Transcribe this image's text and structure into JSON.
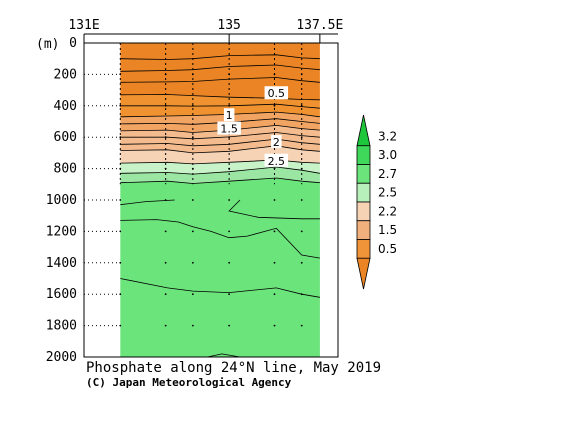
{
  "chart_data": {
    "type": "heatmap",
    "title": "Phosphate along 24°N line, May 2019",
    "credit": "(C) Japan Meteorological Agency",
    "y_unit_label": "(m)",
    "x_ticks": [
      {
        "label": "131E",
        "value": 131
      },
      {
        "label": "135",
        "value": 135
      },
      {
        "label": "137.5E",
        "value": 137.5
      }
    ],
    "x_range": [
      131,
      138
    ],
    "y_range": [
      0,
      2000
    ],
    "y_ticks": [
      0,
      200,
      400,
      600,
      800,
      1000,
      1200,
      1400,
      1600,
      1800,
      2000
    ],
    "station_longitudes": [
      132.0,
      133.25,
      134.0,
      135.0,
      136.25,
      137.0
    ],
    "data_lon_range": [
      132.0,
      137.5
    ],
    "colorbar": {
      "levels": [
        "3.2",
        "3.0",
        "2.7",
        "2.5",
        "2.2",
        "1.5",
        "0.5"
      ],
      "colors": [
        "#1ec63c",
        "#40d85a",
        "#6ce47c",
        "#b8f0bc",
        "#f7d3b6",
        "#f2b07c",
        "#f0943a",
        "#ea8425"
      ],
      "extend": "both"
    },
    "bands": [
      {
        "label": "<0.5",
        "color": "#ea8425",
        "top": [
          [
            132,
            0
          ],
          [
            137.5,
            0
          ]
        ],
        "bottom": [
          [
            132,
            330
          ],
          [
            133.3,
            328
          ],
          [
            134,
            335
          ],
          [
            135,
            345
          ],
          [
            136.3,
            352
          ],
          [
            137,
            360
          ],
          [
            137.5,
            362
          ]
        ]
      },
      {
        "label": "0.5-1.0",
        "color": "#ef922f",
        "top": [
          [
            132,
            330
          ],
          [
            133.3,
            328
          ],
          [
            134,
            335
          ],
          [
            135,
            345
          ],
          [
            136.3,
            352
          ],
          [
            137,
            360
          ],
          [
            137.5,
            362
          ]
        ],
        "bottom": [
          [
            132,
            470
          ],
          [
            133.3,
            465
          ],
          [
            134,
            462
          ],
          [
            135,
            455
          ],
          [
            136.3,
            440
          ],
          [
            137,
            455
          ],
          [
            137.5,
            470
          ]
        ]
      },
      {
        "label": "1.0-1.5",
        "color": "#f2a463",
        "top": [
          [
            132,
            470
          ],
          [
            133.3,
            465
          ],
          [
            134,
            462
          ],
          [
            135,
            455
          ],
          [
            136.3,
            440
          ],
          [
            137,
            455
          ],
          [
            137.5,
            470
          ]
        ],
        "bottom": [
          [
            132,
            560
          ],
          [
            133.3,
            555
          ],
          [
            134,
            570
          ],
          [
            135,
            555
          ],
          [
            136.3,
            525
          ],
          [
            137,
            545
          ],
          [
            137.5,
            555
          ]
        ]
      },
      {
        "label": "1.5-2.2",
        "color": "#f4bc8e",
        "top": [
          [
            132,
            560
          ],
          [
            133.3,
            555
          ],
          [
            134,
            570
          ],
          [
            135,
            555
          ],
          [
            136.3,
            525
          ],
          [
            137,
            545
          ],
          [
            137.5,
            555
          ]
        ],
        "bottom": [
          [
            132,
            685
          ],
          [
            133.3,
            680
          ],
          [
            134,
            700
          ],
          [
            135,
            690
          ],
          [
            136.3,
            655
          ],
          [
            137,
            680
          ],
          [
            137.5,
            690
          ]
        ]
      },
      {
        "label": "2.2-2.5",
        "color": "#f7d3b6",
        "top": [
          [
            132,
            685
          ],
          [
            133.3,
            680
          ],
          [
            134,
            700
          ],
          [
            135,
            690
          ],
          [
            136.3,
            655
          ],
          [
            137,
            680
          ],
          [
            137.5,
            690
          ]
        ],
        "bottom": [
          [
            132,
            765
          ],
          [
            133.3,
            760
          ],
          [
            134,
            770
          ],
          [
            135,
            760
          ],
          [
            136.3,
            745
          ],
          [
            137,
            760
          ],
          [
            137.5,
            765
          ]
        ]
      },
      {
        "label": "2.5-2.7",
        "color": "#c8f2c8",
        "top": [
          [
            132,
            765
          ],
          [
            133.3,
            760
          ],
          [
            134,
            770
          ],
          [
            135,
            760
          ],
          [
            136.3,
            745
          ],
          [
            137,
            760
          ],
          [
            137.5,
            765
          ]
        ],
        "bottom": [
          [
            132,
            830
          ],
          [
            133.3,
            825
          ],
          [
            134,
            835
          ],
          [
            135,
            820
          ],
          [
            136.3,
            790
          ],
          [
            137,
            810
          ],
          [
            137.5,
            830
          ]
        ]
      },
      {
        "label": "2.7-3.0",
        "color": "#9ae6a2",
        "top": [
          [
            132,
            830
          ],
          [
            133.3,
            825
          ],
          [
            134,
            835
          ],
          [
            135,
            820
          ],
          [
            136.3,
            790
          ],
          [
            137,
            810
          ],
          [
            137.5,
            830
          ]
        ],
        "bottom": [
          [
            132,
            890
          ],
          [
            133.3,
            880
          ],
          [
            134,
            895
          ],
          [
            135,
            880
          ],
          [
            136.3,
            860
          ],
          [
            137,
            880
          ],
          [
            137.5,
            890
          ]
        ]
      },
      {
        "label": ">3.0",
        "color": "#6ce47c",
        "top": [
          [
            132,
            890
          ],
          [
            133.3,
            880
          ],
          [
            134,
            895
          ],
          [
            135,
            880
          ],
          [
            136.3,
            860
          ],
          [
            137,
            880
          ],
          [
            137.5,
            890
          ]
        ],
        "bottom": [
          [
            132,
            2000
          ],
          [
            137.5,
            2000
          ]
        ]
      }
    ],
    "contours": [
      [
        [
          132,
          100
        ],
        [
          133.3,
          105
        ],
        [
          134,
          100
        ],
        [
          135,
          80
        ],
        [
          136.3,
          75
        ],
        [
          137,
          95
        ],
        [
          137.5,
          100
        ]
      ],
      [
        [
          132,
          180
        ],
        [
          133.3,
          175
        ],
        [
          134,
          170
        ],
        [
          135,
          150
        ],
        [
          136.3,
          140
        ],
        [
          137,
          160
        ],
        [
          137.5,
          170
        ]
      ],
      [
        [
          132,
          250
        ],
        [
          133.3,
          248
        ],
        [
          134,
          245
        ],
        [
          135,
          230
        ],
        [
          136.3,
          220
        ],
        [
          137,
          240
        ],
        [
          137.5,
          250
        ]
      ],
      [
        [
          132,
          330
        ],
        [
          133.3,
          328
        ],
        [
          134,
          335
        ],
        [
          135,
          345
        ],
        [
          136.3,
          352
        ],
        [
          137,
          360
        ],
        [
          137.5,
          362
        ]
      ],
      [
        [
          132,
          400
        ],
        [
          133.3,
          400
        ],
        [
          134,
          402
        ],
        [
          135,
          400
        ],
        [
          136.3,
          390
        ],
        [
          137,
          405
        ],
        [
          137.5,
          415
        ]
      ],
      [
        [
          132,
          470
        ],
        [
          133.3,
          465
        ],
        [
          134,
          462
        ],
        [
          135,
          455
        ],
        [
          136.3,
          440
        ],
        [
          137,
          455
        ],
        [
          137.5,
          470
        ]
      ],
      [
        [
          132,
          515
        ],
        [
          133.3,
          512
        ],
        [
          134,
          518
        ],
        [
          135,
          505
        ],
        [
          136.3,
          482
        ],
        [
          137,
          500
        ],
        [
          137.5,
          512
        ]
      ],
      [
        [
          132,
          560
        ],
        [
          133.3,
          555
        ],
        [
          134,
          570
        ],
        [
          135,
          555
        ],
        [
          136.3,
          525
        ],
        [
          137,
          545
        ],
        [
          137.5,
          555
        ]
      ],
      [
        [
          132,
          600
        ],
        [
          133.3,
          600
        ],
        [
          134,
          610
        ],
        [
          135,
          598
        ],
        [
          136.3,
          570
        ],
        [
          137,
          590
        ],
        [
          137.5,
          600
        ]
      ],
      [
        [
          132,
          645
        ],
        [
          133.3,
          640
        ],
        [
          134,
          655
        ],
        [
          135,
          645
        ],
        [
          136.3,
          612
        ],
        [
          137,
          635
        ],
        [
          137.5,
          645
        ]
      ],
      [
        [
          132,
          685
        ],
        [
          133.3,
          680
        ],
        [
          134,
          700
        ],
        [
          135,
          690
        ],
        [
          136.3,
          655
        ],
        [
          137,
          680
        ],
        [
          137.5,
          690
        ]
      ],
      [
        [
          132,
          765
        ],
        [
          133.3,
          760
        ],
        [
          134,
          770
        ],
        [
          135,
          760
        ],
        [
          136.3,
          745
        ],
        [
          137,
          760
        ],
        [
          137.5,
          765
        ]
      ],
      [
        [
          132,
          830
        ],
        [
          133.3,
          825
        ],
        [
          134,
          835
        ],
        [
          135,
          820
        ],
        [
          136.3,
          790
        ],
        [
          137,
          810
        ],
        [
          137.5,
          830
        ]
      ],
      [
        [
          132,
          890
        ],
        [
          133.3,
          880
        ],
        [
          134,
          895
        ],
        [
          135,
          880
        ],
        [
          136.3,
          860
        ],
        [
          137,
          880
        ],
        [
          137.5,
          890
        ]
      ],
      [
        [
          132,
          1130
        ],
        [
          133,
          1125
        ],
        [
          133.6,
          1140
        ],
        [
          134,
          1170
        ],
        [
          134.5,
          1200
        ],
        [
          135,
          1240
        ],
        [
          135.5,
          1230
        ],
        [
          136.3,
          1180
        ],
        [
          137,
          1350
        ],
        [
          137.5,
          1370
        ]
      ],
      [
        [
          132,
          1030
        ],
        [
          132.7,
          1010
        ],
        [
          133.5,
          1000
        ]
      ],
      [
        [
          135.3,
          1000
        ],
        [
          135,
          1070
        ],
        [
          135.8,
          1110
        ],
        [
          137,
          1120
        ],
        [
          137.5,
          1120
        ]
      ],
      [
        [
          132,
          1500
        ],
        [
          133.3,
          1560
        ],
        [
          134,
          1580
        ],
        [
          135,
          1590
        ],
        [
          136.3,
          1560
        ],
        [
          137,
          1600
        ],
        [
          137.5,
          1620
        ]
      ],
      [
        [
          134.4,
          2000
        ],
        [
          134.8,
          1980
        ],
        [
          135.3,
          2000
        ]
      ]
    ],
    "contour_labels": [
      {
        "text": "0.5",
        "lon": 136.3,
        "depth": 320
      },
      {
        "text": "1",
        "lon": 135.0,
        "depth": 460
      },
      {
        "text": "1.5",
        "lon": 135.0,
        "depth": 545
      },
      {
        "text": "2",
        "lon": 136.3,
        "depth": 630
      },
      {
        "text": "2.5",
        "lon": 136.3,
        "depth": 750
      }
    ]
  }
}
